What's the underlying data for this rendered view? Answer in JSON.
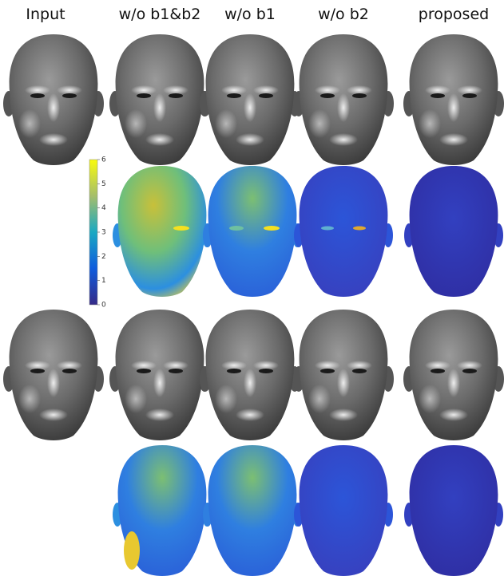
{
  "header": {
    "columns": [
      "Input",
      "w/o b1&b2",
      "w/o b1",
      "w/o b2",
      "proposed"
    ]
  },
  "colorbar": {
    "range": [
      0,
      6
    ],
    "ticks": [
      0,
      1,
      2,
      3,
      4,
      5,
      6
    ]
  }
}
